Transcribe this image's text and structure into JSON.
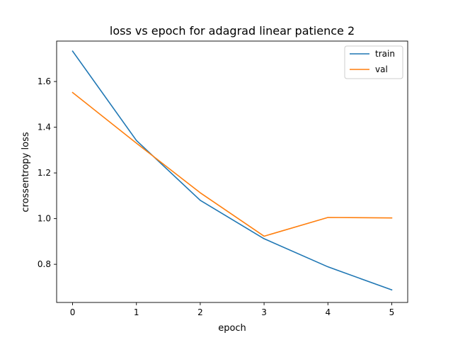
{
  "chart_data": {
    "type": "line",
    "title": "loss vs epoch for adagrad linear patience 2",
    "xlabel": "epoch",
    "ylabel": "crossentropy loss",
    "x": [
      0,
      1,
      2,
      3,
      4,
      5
    ],
    "xticks": [
      "0",
      "1",
      "2",
      "3",
      "4",
      "5"
    ],
    "yticks": [
      "0.8",
      "1.0",
      "1.2",
      "1.4",
      "1.6"
    ],
    "xlim": [
      -0.25,
      5.25
    ],
    "ylim": [
      0.633,
      1.777
    ],
    "grid": false,
    "legend_position": "top-right",
    "series": [
      {
        "name": "train",
        "color": "#1f77b4",
        "values": [
          1.733,
          1.342,
          1.08,
          0.912,
          0.789,
          0.688
        ]
      },
      {
        "name": "val",
        "color": "#ff7f0e",
        "values": [
          1.552,
          1.33,
          1.113,
          0.923,
          1.005,
          1.003
        ]
      }
    ]
  }
}
